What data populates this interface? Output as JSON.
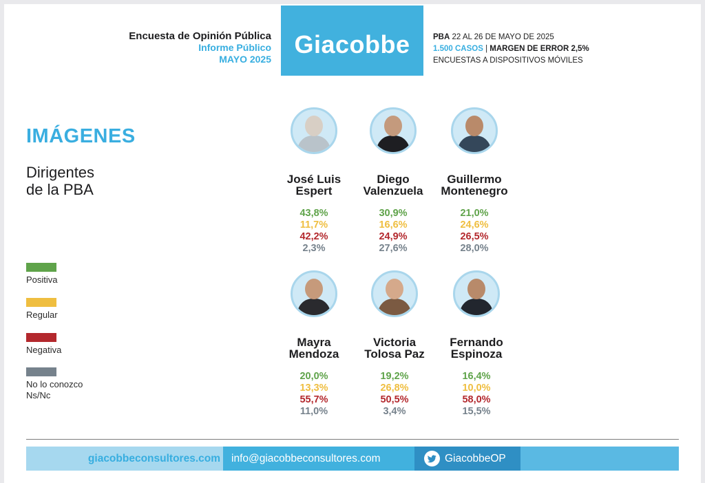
{
  "header": {
    "line1": "Encuesta de Opinión Pública",
    "line2": "Informe Público",
    "line3": "MAYO 2025",
    "logo": "Giacobbe",
    "meta": {
      "region": "PBA",
      "dates": " 22 AL 26 DE MAYO DE 2025",
      "cases": "1.500 CASOS",
      "sep": " | ",
      "margin": "MARGEN DE ERROR 2,5%",
      "method": "ENCUESTAS A DISPOSITIVOS MÓVILES"
    }
  },
  "section_title": "IMÁGENES",
  "subtitle_1": "Dirigentes",
  "subtitle_2": "de la PBA",
  "legend": [
    {
      "label": "Positiva",
      "color": "#5fa34a"
    },
    {
      "label": "Regular",
      "color": "#efbe40"
    },
    {
      "label": "Negativa",
      "color": "#b3282d"
    },
    {
      "label": "No lo conozco",
      "label2": "Ns/Nc",
      "color": "#76828c"
    }
  ],
  "people": [
    {
      "first": "José Luis",
      "last": "Espert",
      "positiva": "43,8%",
      "regular": "11,7%",
      "negativa": "42,2%",
      "ns": "2,3%",
      "skin": "#d8cfc5",
      "cloth": "#b9c3ca"
    },
    {
      "first": "Diego",
      "last": "Valenzuela",
      "positiva": "30,9%",
      "regular": "16,6%",
      "negativa": "24,9%",
      "ns": "27,6%",
      "skin": "#c49a7d",
      "cloth": "#1e1e22"
    },
    {
      "first": "Guillermo",
      "last": "Montenegro",
      "positiva": "21,0%",
      "regular": "24,6%",
      "negativa": "26,5%",
      "ns": "28,0%",
      "skin": "#b98a6a",
      "cloth": "#34475a"
    },
    {
      "first": "Mayra",
      "last": "Mendoza",
      "positiva": "20,0%",
      "regular": "13,3%",
      "negativa": "55,7%",
      "ns": "11,0%",
      "skin": "#c69a7b",
      "cloth": "#2a2a2e"
    },
    {
      "first": "Victoria",
      "last": "Tolosa Paz",
      "positiva": "19,2%",
      "regular": "26,8%",
      "negativa": "50,5%",
      "ns": "3,4%",
      "skin": "#d5a98b",
      "cloth": "#7b5a42"
    },
    {
      "first": "Fernando",
      "last": "Espinoza",
      "positiva": "16,4%",
      "regular": "10,0%",
      "negativa": "58,0%",
      "ns": "15,5%",
      "skin": "#b88a6a",
      "cloth": "#22262e"
    }
  ],
  "footer": {
    "website": "giacobbeconsultores.com",
    "email": "info@giacobbeconsultores.com",
    "twitter": "GiacobbeOP",
    "twitter_icon": "twitter-bird-icon"
  }
}
